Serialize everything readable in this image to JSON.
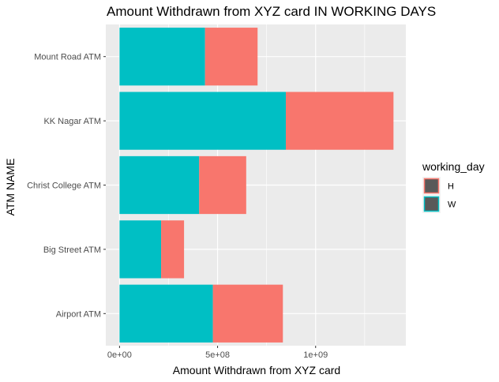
{
  "chart_data": {
    "type": "bar",
    "orientation": "horizontal",
    "stacked": true,
    "title": "Amount Withdrawn from XYZ card IN WORKING DAYS",
    "xlabel": "Amount Withdrawn from XYZ card",
    "ylabel": "ATM NAME",
    "categories": [
      "Airport ATM",
      "Big Street ATM",
      "Christ College ATM",
      "KK Nagar ATM",
      "Mount Road ATM"
    ],
    "series": [
      {
        "name": "W",
        "color": "#00BFC4",
        "values": [
          476000000,
          212000000,
          406000000,
          848000000,
          436000000
        ]
      },
      {
        "name": "H",
        "color": "#F8766D",
        "values": [
          357000000,
          117000000,
          240000000,
          549000000,
          268000000
        ]
      }
    ],
    "xlim": [
      -70000000,
      1460000000
    ],
    "xticks": [
      {
        "value": 0,
        "label": "0e+00"
      },
      {
        "value": 500000000,
        "label": "5e+08"
      },
      {
        "value": 1000000000,
        "label": "1e+09"
      }
    ],
    "grid": true,
    "legend": {
      "title": "working_day",
      "position": "right",
      "entries": [
        {
          "label": "H",
          "color": "#F8766D"
        },
        {
          "label": "W",
          "color": "#00BFC4"
        }
      ]
    },
    "panel_background": "#EBEBEB"
  }
}
